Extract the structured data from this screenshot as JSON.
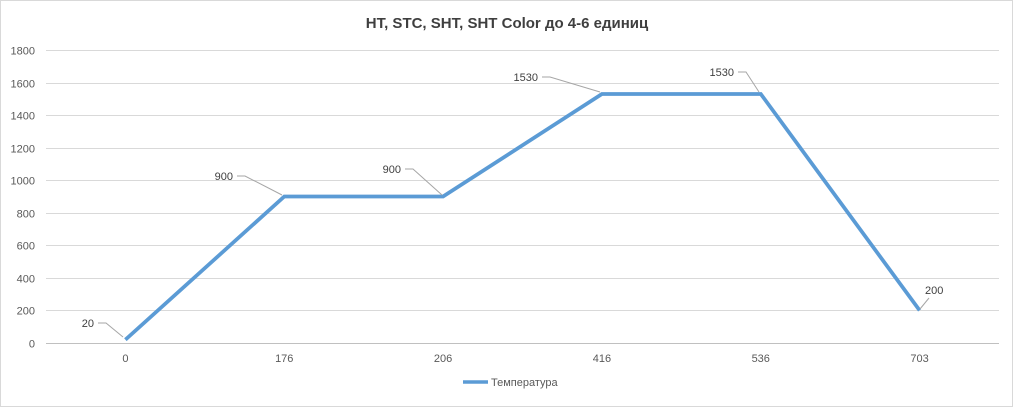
{
  "chart_data": {
    "type": "line",
    "title": "HT, STC, SHT, SHT Color до 4-6 единиц",
    "categories": [
      "0",
      "176",
      "206",
      "416",
      "536",
      "703"
    ],
    "series": [
      {
        "name": "Температура",
        "values": [
          20,
          900,
          900,
          1530,
          1530,
          200
        ],
        "color": "#5B9BD5"
      }
    ],
    "data_labels": [
      "20",
      "900",
      "900",
      "1530",
      "1530",
      "200"
    ],
    "xlabel": "",
    "ylabel": "",
    "ylim": [
      0,
      1800
    ],
    "ytick_step": 200,
    "ytick_labels": [
      "0",
      "200",
      "400",
      "600",
      "800",
      "1000",
      "1200",
      "1400",
      "1600",
      "1800"
    ],
    "grid": true,
    "legend_position": "bottom"
  },
  "colors": {
    "line": "#5B9BD5",
    "gridline": "#D9D9D9",
    "axis_line": "#C0C0C0",
    "tick_label": "#595959",
    "title": "#3F3F3F",
    "data_label": "#404040",
    "leader_line": "#A6A6A6",
    "background": "#FFFFFF",
    "border": "#D9D9D9"
  }
}
